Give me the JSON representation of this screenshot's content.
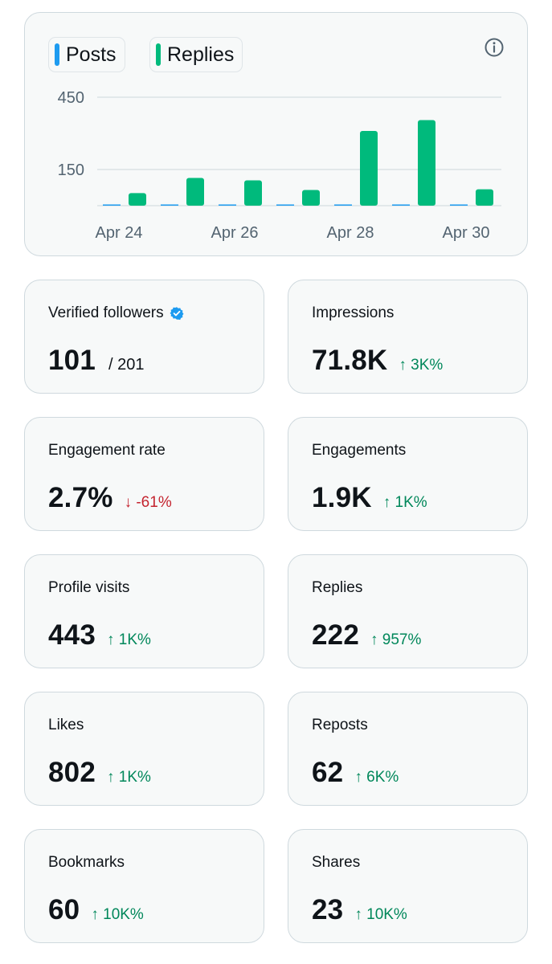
{
  "colors": {
    "posts": "#1d9bf0",
    "replies": "#00ba7c",
    "card_bg": "#f7f9f9",
    "card_border": "#cfd9de",
    "up": "#00875a",
    "down": "#c4242f"
  },
  "legend": {
    "posts_label": "Posts",
    "replies_label": "Replies"
  },
  "info_icon": "info-icon",
  "chart_data": {
    "type": "bar",
    "categories": [
      "Apr 24",
      "Apr 25",
      "Apr 26",
      "Apr 27",
      "Apr 28",
      "Apr 29",
      "Apr 30"
    ],
    "tick_labels_x": [
      "Apr 24",
      "Apr 26",
      "Apr 28",
      "Apr 30"
    ],
    "y_ticks": [
      150,
      450
    ],
    "ylim": [
      0,
      480
    ],
    "grid": true,
    "legend_placement": "top-left",
    "series": [
      {
        "name": "Posts",
        "values": [
          3,
          3,
          3,
          3,
          3,
          3,
          3
        ]
      },
      {
        "name": "Replies",
        "values": [
          52,
          115,
          105,
          65,
          310,
          355,
          68
        ]
      }
    ]
  },
  "tiles": [
    {
      "id": "verified-followers",
      "label": "Verified followers",
      "value": "101",
      "sub": "/ 201",
      "verified_icon": "verified-badge-icon"
    },
    {
      "id": "impressions",
      "label": "Impressions",
      "value": "71.8K",
      "delta": "↑ 3K%",
      "direction": "up"
    },
    {
      "id": "engagement-rate",
      "label": "Engagement rate",
      "value": "2.7%",
      "delta": "↓ -61%",
      "direction": "down"
    },
    {
      "id": "engagements",
      "label": "Engagements",
      "value": "1.9K",
      "delta": "↑ 1K%",
      "direction": "up"
    },
    {
      "id": "profile-visits",
      "label": "Profile visits",
      "value": "443",
      "delta": "↑ 1K%",
      "direction": "up"
    },
    {
      "id": "replies",
      "label": "Replies",
      "value": "222",
      "delta": "↑ 957%",
      "direction": "up"
    },
    {
      "id": "likes",
      "label": "Likes",
      "value": "802",
      "delta": "↑ 1K%",
      "direction": "up"
    },
    {
      "id": "reposts",
      "label": "Reposts",
      "value": "62",
      "delta": "↑ 6K%",
      "direction": "up"
    },
    {
      "id": "bookmarks",
      "label": "Bookmarks",
      "value": "60",
      "delta": "↑ 10K%",
      "direction": "up"
    },
    {
      "id": "shares",
      "label": "Shares",
      "value": "23",
      "delta": "↑ 10K%",
      "direction": "up"
    }
  ]
}
